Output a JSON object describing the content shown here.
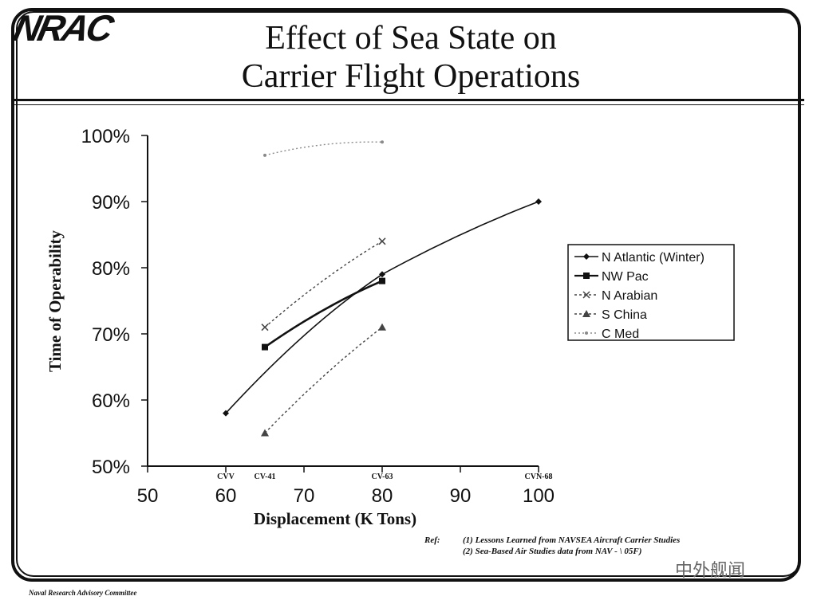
{
  "header": {
    "logo_text": "NRAC",
    "title_line1": "Effect of Sea State on",
    "title_line2": "Carrier Flight Operations"
  },
  "chart_data": {
    "type": "line",
    "title": "Effect of Sea State on Carrier Flight Operations",
    "xlabel": "Displacement (K Tons)",
    "ylabel": "Time of Operability",
    "xlim": [
      50,
      100
    ],
    "ylim": [
      50,
      100
    ],
    "x_ticks": [
      "50",
      "60",
      "70",
      "80",
      "90",
      "100"
    ],
    "y_ticks": [
      "50%",
      "60%",
      "70%",
      "80%",
      "90%",
      "100%"
    ],
    "ship_labels": [
      {
        "label": "CVV",
        "x": 60
      },
      {
        "label": "CV-41",
        "x": 65
      },
      {
        "label": "CV-63",
        "x": 80
      },
      {
        "label": "CVN-68",
        "x": 100
      }
    ],
    "legend_position": "right",
    "grid": false,
    "series": [
      {
        "name": "N Atlantic (Winter)",
        "color": "#111111",
        "marker": "diamond",
        "dash": "",
        "width": 1.6,
        "points": [
          [
            60,
            58
          ],
          [
            80,
            79
          ],
          [
            100,
            90
          ]
        ]
      },
      {
        "name": "NW Pac",
        "color": "#111111",
        "marker": "square",
        "dash": "",
        "width": 2.6,
        "points": [
          [
            65,
            68
          ],
          [
            80,
            78
          ]
        ]
      },
      {
        "name": "N Arabian",
        "color": "#444444",
        "marker": "x",
        "dash": "3,3",
        "width": 1.4,
        "points": [
          [
            65,
            71
          ],
          [
            80,
            84
          ]
        ]
      },
      {
        "name": "S China",
        "color": "#444444",
        "marker": "triangle",
        "dash": "3,3",
        "width": 1.4,
        "points": [
          [
            65,
            55
          ],
          [
            80,
            71
          ]
        ]
      },
      {
        "name": "C Med",
        "color": "#8a8a8a",
        "marker": "dot",
        "dash": "2,3",
        "width": 1.4,
        "points": [
          [
            65,
            97
          ],
          [
            80,
            99
          ]
        ]
      }
    ]
  },
  "refs": {
    "label": "Ref:",
    "item1": "(1)  Lessons Learned from NAVSEA Aircraft Carrier Studies",
    "item2": "(2)  Sea-Based Air Studies data from NAV - \\ 05F)"
  },
  "footer": "Naval Research Advisory Committee",
  "watermark": "中外舰闻"
}
